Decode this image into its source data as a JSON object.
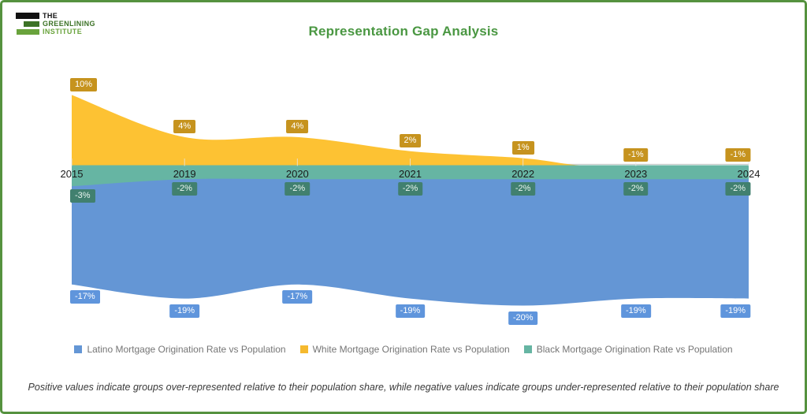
{
  "logo": {
    "line1": "THE",
    "line2": "GREENLINING",
    "line3": "INSTITUTE"
  },
  "header": {
    "title": "Representation Gap Analysis",
    "title_color": "#4a9742"
  },
  "chart_data": {
    "type": "area",
    "title": "Representation Gap Analysis",
    "x": [
      2015,
      2019,
      2020,
      2021,
      2022,
      2023,
      2024
    ],
    "x_spacing": "categorical-equal",
    "ylim": [
      -22,
      12
    ],
    "grid": false,
    "legend_position": "bottom",
    "axis_color": "#cfcfcf",
    "series": [
      {
        "name": "White Mortgage Origination Rate vs Population",
        "values": [
          10,
          4,
          4,
          2,
          1,
          -1,
          -1
        ],
        "area_color": "#fdc233",
        "label_bg": "#c6931e",
        "label_text_color": "#ffffff"
      },
      {
        "name": "Latino Mortgage Origination Rate vs Population",
        "values": [
          -17,
          -19,
          -17,
          -19,
          -20,
          -19,
          -19
        ],
        "area_color": "#6496d5",
        "label_bg": "#5f95dc",
        "label_text_color": "#ffffff"
      },
      {
        "name": "Black Mortgage Origination Rate vs Population",
        "values": [
          -3,
          -2,
          -2,
          -2,
          -2,
          -2,
          -2
        ],
        "area_color": "#66b5a3",
        "label_bg": "#41806f",
        "label_text_color": "#eaf6f0"
      }
    ]
  },
  "legend": {
    "items": [
      {
        "label": "Latino Mortgage Origination Rate vs Population",
        "color": "#6496d5"
      },
      {
        "label": "White Mortgage Origination Rate vs Population",
        "color": "#f5b92e"
      },
      {
        "label": "Black Mortgage Origination Rate vs Population",
        "color": "#66b5a3"
      }
    ]
  },
  "footnote": "Positive values indicate groups over-represented relative to their population share, while negative values indicate groups under-represented relative to their population share"
}
